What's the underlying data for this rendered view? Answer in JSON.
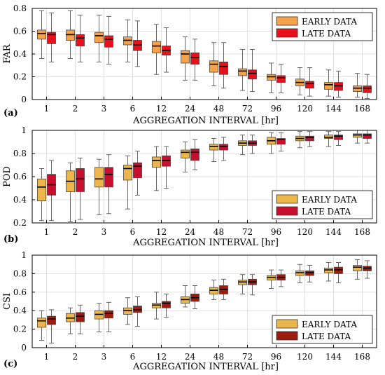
{
  "chart_data": [
    {
      "type": "box",
      "panel_label": "(a)",
      "ylabel": "FAR",
      "xlabel": "AGGREGATION INTERVAL [hr]",
      "categories": [
        "1",
        "2",
        "3",
        "6",
        "12",
        "24",
        "48",
        "72",
        "96",
        "120",
        "144",
        "168"
      ],
      "ylim": [
        0,
        0.8
      ],
      "yticks": [
        "0",
        "0.2",
        "0.4",
        "0.6",
        "0.8"
      ],
      "grid": true,
      "legend": "top-right",
      "series": [
        {
          "name": "EARLY DATA",
          "color": "#F5A24A",
          "whisker_low": [
            0.36,
            0.36,
            0.33,
            0.33,
            0.22,
            0.17,
            0.12,
            0.08,
            0.06,
            0.04,
            0.03,
            0.02
          ],
          "q1": [
            0.53,
            0.52,
            0.5,
            0.48,
            0.41,
            0.32,
            0.24,
            0.21,
            0.17,
            0.12,
            0.09,
            0.07
          ],
          "median": [
            0.58,
            0.57,
            0.56,
            0.52,
            0.47,
            0.4,
            0.31,
            0.25,
            0.2,
            0.15,
            0.13,
            0.1
          ],
          "q3": [
            0.61,
            0.61,
            0.59,
            0.55,
            0.51,
            0.43,
            0.34,
            0.27,
            0.22,
            0.18,
            0.15,
            0.12
          ],
          "whisker_high": [
            0.78,
            0.78,
            0.74,
            0.7,
            0.66,
            0.55,
            0.5,
            0.44,
            0.32,
            0.28,
            0.26,
            0.23
          ]
        },
        {
          "name": "LATE DATA",
          "color": "#E8101A",
          "whisker_low": [
            0.33,
            0.33,
            0.31,
            0.29,
            0.24,
            0.17,
            0.1,
            0.07,
            0.06,
            0.03,
            0.02,
            0.01
          ],
          "q1": [
            0.49,
            0.47,
            0.46,
            0.43,
            0.39,
            0.31,
            0.22,
            0.18,
            0.15,
            0.1,
            0.08,
            0.06
          ],
          "median": [
            0.57,
            0.54,
            0.53,
            0.48,
            0.43,
            0.37,
            0.29,
            0.23,
            0.19,
            0.14,
            0.12,
            0.1
          ],
          "q3": [
            0.59,
            0.57,
            0.56,
            0.52,
            0.47,
            0.41,
            0.33,
            0.26,
            0.21,
            0.16,
            0.15,
            0.12
          ],
          "whisker_high": [
            0.76,
            0.74,
            0.73,
            0.69,
            0.63,
            0.53,
            0.5,
            0.44,
            0.31,
            0.28,
            0.25,
            0.22
          ]
        }
      ]
    },
    {
      "type": "box",
      "panel_label": "(b)",
      "ylabel": "POD",
      "xlabel": "AGGREGATION INTERVAL [hr]",
      "categories": [
        "1",
        "2",
        "3",
        "6",
        "12",
        "24",
        "48",
        "72",
        "96",
        "120",
        "144",
        "168"
      ],
      "ylim": [
        0.2,
        1.0
      ],
      "yticks": [
        "0.2",
        "0.4",
        "0.6",
        "0.8",
        "1"
      ],
      "grid": true,
      "legend": "bottom-right",
      "series": [
        {
          "name": "EARLY DATA",
          "color": "#EDB64A",
          "whisker_low": [
            0.22,
            0.21,
            0.27,
            0.32,
            0.48,
            0.64,
            0.73,
            0.79,
            0.8,
            0.85,
            0.86,
            0.89
          ],
          "q1": [
            0.39,
            0.47,
            0.51,
            0.57,
            0.68,
            0.76,
            0.83,
            0.87,
            0.88,
            0.91,
            0.93,
            0.94
          ],
          "median": [
            0.51,
            0.56,
            0.58,
            0.67,
            0.74,
            0.81,
            0.86,
            0.89,
            0.91,
            0.93,
            0.94,
            0.96
          ],
          "q3": [
            0.58,
            0.65,
            0.68,
            0.7,
            0.77,
            0.83,
            0.88,
            0.91,
            0.94,
            0.95,
            0.96,
            0.97
          ],
          "whisker_high": [
            0.67,
            0.72,
            0.75,
            0.78,
            0.86,
            0.9,
            0.93,
            0.96,
            0.98,
            0.99,
            0.99,
            1.0
          ]
        },
        {
          "name": "LATE DATA",
          "color": "#C8102E",
          "whisker_low": [
            0.22,
            0.23,
            0.28,
            0.44,
            0.5,
            0.66,
            0.74,
            0.8,
            0.82,
            0.86,
            0.87,
            0.89
          ],
          "q1": [
            0.44,
            0.47,
            0.51,
            0.59,
            0.69,
            0.74,
            0.83,
            0.87,
            0.88,
            0.91,
            0.92,
            0.93
          ],
          "median": [
            0.53,
            0.58,
            0.62,
            0.69,
            0.74,
            0.81,
            0.86,
            0.89,
            0.92,
            0.94,
            0.95,
            0.96
          ],
          "q3": [
            0.62,
            0.67,
            0.68,
            0.72,
            0.78,
            0.84,
            0.88,
            0.91,
            0.93,
            0.95,
            0.96,
            0.97
          ],
          "whisker_high": [
            0.74,
            0.76,
            0.79,
            0.82,
            0.86,
            0.92,
            0.94,
            0.96,
            0.98,
            0.99,
            0.99,
            1.0
          ]
        }
      ]
    },
    {
      "type": "box",
      "panel_label": "(c)",
      "ylabel": "CSI",
      "xlabel": "AGGREGATION INTERVAL [hr]",
      "categories": [
        "1",
        "2",
        "3",
        "6",
        "12",
        "24",
        "48",
        "72",
        "96",
        "120",
        "144",
        "168"
      ],
      "ylim": [
        0,
        1.0
      ],
      "yticks": [
        "0",
        "0.2",
        "0.4",
        "0.6",
        "0.8",
        "1"
      ],
      "grid": true,
      "legend": "bottom-right",
      "series": [
        {
          "name": "EARLY DATA",
          "color": "#EDB64A",
          "whisker_low": [
            0.08,
            0.15,
            0.17,
            0.25,
            0.31,
            0.44,
            0.52,
            0.58,
            0.64,
            0.7,
            0.72,
            0.74
          ],
          "q1": [
            0.22,
            0.28,
            0.31,
            0.36,
            0.43,
            0.48,
            0.58,
            0.68,
            0.73,
            0.78,
            0.81,
            0.83
          ],
          "median": [
            0.29,
            0.32,
            0.36,
            0.4,
            0.46,
            0.52,
            0.62,
            0.71,
            0.76,
            0.81,
            0.84,
            0.87
          ],
          "q3": [
            0.32,
            0.37,
            0.4,
            0.43,
            0.48,
            0.55,
            0.65,
            0.73,
            0.78,
            0.83,
            0.86,
            0.89
          ],
          "whisker_high": [
            0.4,
            0.43,
            0.48,
            0.54,
            0.6,
            0.67,
            0.73,
            0.79,
            0.84,
            0.9,
            0.92,
            0.95
          ]
        },
        {
          "name": "LATE DATA",
          "color": "#9E1B10",
          "whisker_low": [
            0.05,
            0.15,
            0.17,
            0.23,
            0.33,
            0.42,
            0.52,
            0.57,
            0.66,
            0.71,
            0.7,
            0.75
          ],
          "q1": [
            0.25,
            0.28,
            0.32,
            0.38,
            0.43,
            0.5,
            0.58,
            0.68,
            0.73,
            0.78,
            0.8,
            0.83
          ],
          "median": [
            0.31,
            0.34,
            0.37,
            0.41,
            0.48,
            0.54,
            0.63,
            0.71,
            0.76,
            0.81,
            0.84,
            0.86
          ],
          "q3": [
            0.34,
            0.38,
            0.4,
            0.45,
            0.5,
            0.58,
            0.67,
            0.74,
            0.79,
            0.83,
            0.87,
            0.88
          ],
          "whisker_high": [
            0.41,
            0.46,
            0.49,
            0.55,
            0.58,
            0.67,
            0.74,
            0.79,
            0.84,
            0.89,
            0.92,
            0.94
          ]
        }
      ]
    }
  ]
}
